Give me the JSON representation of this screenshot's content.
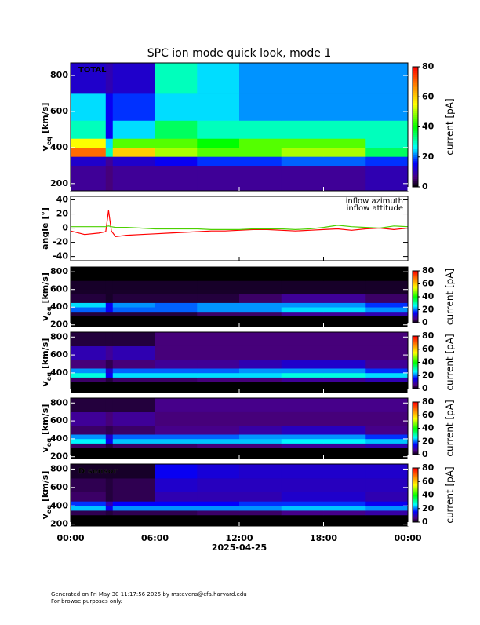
{
  "title": "SPC ion mode quick look, mode 1",
  "footer": [
    "Generated on Fri May 30 11:17:56 2025 by mstevens@cfa.harvard.edu",
    "For browse purposes only."
  ],
  "chart_data": [
    {
      "type": "heatmap",
      "label": "TOTAL",
      "ylabel": "v",
      "ylabel_sub": "eq",
      "ylabel_unit": "[km/s]",
      "xlim": [
        0,
        24
      ],
      "ylim": [
        160,
        870
      ],
      "yticks": [
        200,
        400,
        600,
        800
      ],
      "xbins": [
        0,
        2.5,
        3,
        6,
        9,
        12,
        15,
        18,
        21,
        24
      ],
      "ybins": [
        160,
        300,
        350,
        400,
        450,
        550,
        700,
        870
      ],
      "values": [
        [
          8,
          6,
          8,
          8,
          8,
          8,
          8,
          8,
          10
        ],
        [
          12,
          8,
          12,
          15,
          18,
          18,
          20,
          20,
          18
        ],
        [
          70,
          30,
          60,
          50,
          45,
          45,
          50,
          50,
          35
        ],
        [
          55,
          25,
          45,
          45,
          40,
          45,
          45,
          45,
          30
        ],
        [
          30,
          15,
          25,
          35,
          30,
          30,
          30,
          30,
          30
        ],
        [
          25,
          15,
          18,
          25,
          25,
          22,
          22,
          22,
          22
        ],
        [
          12,
          10,
          12,
          30,
          25,
          22,
          22,
          22,
          22
        ]
      ],
      "clim": [
        0,
        80
      ],
      "cticks": [
        0,
        20,
        40,
        60,
        80
      ],
      "colorbar_label": "current [pA]"
    },
    {
      "type": "line",
      "ylabel": "angle [°]",
      "xlim": [
        0,
        24
      ],
      "ylim": [
        -46,
        45
      ],
      "yticks": [
        -40,
        -20,
        0,
        20,
        40
      ],
      "x": [
        0,
        1,
        2,
        2.5,
        2.7,
        2.9,
        3.2,
        4,
        5,
        6,
        7,
        8,
        9,
        10,
        11,
        12,
        13,
        14,
        15,
        16,
        17,
        18,
        19,
        20,
        21,
        22,
        23,
        24
      ],
      "series": [
        {
          "name": "inflow azimuth",
          "color": "#ff0000",
          "values": [
            -4,
            -9,
            -7,
            -5,
            25,
            -4,
            -12,
            -10,
            -9,
            -8,
            -7,
            -6,
            -5,
            -4,
            -4,
            -3,
            -2,
            -2,
            -3,
            -4,
            -3,
            -2,
            -1,
            -3,
            -1,
            0,
            -2,
            0
          ]
        },
        {
          "name": "inflow attitude",
          "color": "#4cd000",
          "values": [
            2,
            2,
            2,
            2,
            3,
            2,
            1,
            1,
            0,
            -1,
            -1,
            -1,
            -1,
            -2,
            -2,
            -2,
            -1,
            -1,
            -1,
            -2,
            -1,
            1,
            4,
            2,
            1,
            0,
            3,
            2
          ]
        }
      ]
    },
    {
      "type": "heatmap",
      "ylabel": "v",
      "ylabel_sub": "eq",
      "ylabel_unit": "[km/s]",
      "xlim": [
        0,
        24
      ],
      "ylim": [
        180,
        855
      ],
      "yticks": [
        200,
        400,
        600,
        800
      ],
      "xbins": [
        0,
        2.5,
        3,
        6,
        9,
        12,
        15,
        18,
        21,
        24
      ],
      "ybins": [
        180,
        300,
        350,
        400,
        450,
        550,
        700,
        855
      ],
      "values": [
        [
          0,
          0,
          0,
          0,
          0,
          0,
          0,
          0,
          0
        ],
        [
          3,
          3,
          3,
          3,
          5,
          5,
          8,
          8,
          10
        ],
        [
          20,
          15,
          20,
          20,
          22,
          22,
          25,
          25,
          22
        ],
        [
          25,
          15,
          22,
          20,
          22,
          22,
          22,
          22,
          18
        ],
        [
          3,
          2,
          3,
          3,
          3,
          5,
          8,
          8,
          5
        ],
        [
          2,
          2,
          2,
          2,
          2,
          2,
          2,
          2,
          2
        ],
        [
          0,
          0,
          0,
          0,
          0,
          0,
          0,
          0,
          0
        ]
      ],
      "clim": [
        0,
        80
      ],
      "cticks": [
        0,
        20,
        40,
        60,
        80
      ],
      "colorbar_label": "current [pA]"
    },
    {
      "type": "heatmap",
      "ylabel": "v",
      "ylabel_sub": "eq",
      "ylabel_unit": "[km/s]",
      "xlim": [
        0,
        24
      ],
      "ylim": [
        180,
        855
      ],
      "yticks": [
        400,
        600,
        800
      ],
      "xbins": [
        0,
        2.5,
        3,
        6,
        9,
        12,
        15,
        18,
        21,
        24
      ],
      "ybins": [
        180,
        300,
        350,
        400,
        450,
        550,
        700,
        855
      ],
      "values": [
        [
          0,
          0,
          0,
          0,
          0,
          0,
          0,
          0,
          0
        ],
        [
          5,
          3,
          5,
          5,
          6,
          6,
          8,
          8,
          10
        ],
        [
          28,
          15,
          25,
          25,
          25,
          25,
          28,
          28,
          25
        ],
        [
          22,
          12,
          20,
          20,
          20,
          22,
          22,
          22,
          18
        ],
        [
          6,
          4,
          6,
          8,
          8,
          10,
          12,
          12,
          8
        ],
        [
          10,
          8,
          10,
          6,
          6,
          6,
          6,
          6,
          6
        ],
        [
          3,
          3,
          3,
          6,
          6,
          6,
          6,
          6,
          6
        ]
      ],
      "clim": [
        0,
        80
      ],
      "cticks": [
        0,
        20,
        40,
        60,
        80
      ],
      "colorbar_label": "current [pA]"
    },
    {
      "type": "heatmap",
      "ylabel": "v",
      "ylabel_sub": "eq",
      "ylabel_unit": "[km/s]",
      "xlim": [
        0,
        24
      ],
      "ylim": [
        180,
        855
      ],
      "yticks": [
        200,
        400,
        600,
        800
      ],
      "xbins": [
        0,
        2.5,
        3,
        6,
        9,
        12,
        15,
        18,
        21,
        24
      ],
      "ybins": [
        180,
        300,
        350,
        400,
        450,
        550,
        700,
        855
      ],
      "values": [
        [
          0,
          0,
          0,
          0,
          0,
          0,
          0,
          0,
          0
        ],
        [
          5,
          3,
          5,
          5,
          6,
          6,
          8,
          8,
          10
        ],
        [
          26,
          15,
          24,
          24,
          24,
          24,
          26,
          26,
          24
        ],
        [
          22,
          12,
          20,
          20,
          20,
          22,
          22,
          22,
          18
        ],
        [
          5,
          4,
          5,
          7,
          7,
          9,
          11,
          11,
          7
        ],
        [
          8,
          6,
          8,
          6,
          6,
          6,
          6,
          6,
          6
        ],
        [
          3,
          3,
          3,
          7,
          7,
          7,
          7,
          7,
          7
        ]
      ],
      "clim": [
        0,
        80
      ],
      "cticks": [
        0,
        20,
        40,
        60,
        80
      ],
      "colorbar_label": "current [pA]"
    },
    {
      "type": "heatmap",
      "label": "D sensor",
      "ylabel": "v",
      "ylabel_sub": "eq",
      "ylabel_unit": "[km/s]",
      "xlim": [
        0,
        24
      ],
      "ylim": [
        180,
        855
      ],
      "yticks": [
        200,
        400,
        600,
        800
      ],
      "xbins": [
        0,
        2.5,
        3,
        6,
        9,
        12,
        15,
        18,
        21,
        24
      ],
      "ybins": [
        180,
        300,
        350,
        400,
        450,
        550,
        700,
        855
      ],
      "values": [
        [
          0,
          0,
          0,
          0,
          0,
          0,
          0,
          0,
          0
        ],
        [
          4,
          3,
          4,
          4,
          5,
          5,
          7,
          7,
          9
        ],
        [
          24,
          15,
          22,
          22,
          22,
          22,
          24,
          24,
          22
        ],
        [
          18,
          10,
          16,
          16,
          16,
          18,
          18,
          18,
          15
        ],
        [
          5,
          3,
          4,
          10,
          10,
          10,
          12,
          12,
          10
        ],
        [
          4,
          3,
          4,
          12,
          11,
          11,
          11,
          11,
          11
        ],
        [
          2,
          2,
          2,
          15,
          13,
          12,
          12,
          12,
          12
        ]
      ],
      "clim": [
        0,
        80
      ],
      "cticks": [
        0,
        20,
        40,
        60,
        80
      ],
      "colorbar_label": "current [pA]",
      "xticks": [
        {
          "value": 0,
          "label": "00:00"
        },
        {
          "value": 6,
          "label": "06:00"
        },
        {
          "value": 12,
          "label": "12:00"
        },
        {
          "value": 18,
          "label": "18:00"
        },
        {
          "value": 24,
          "label": "00:00"
        }
      ],
      "xlabel": "2025-04-25"
    }
  ]
}
